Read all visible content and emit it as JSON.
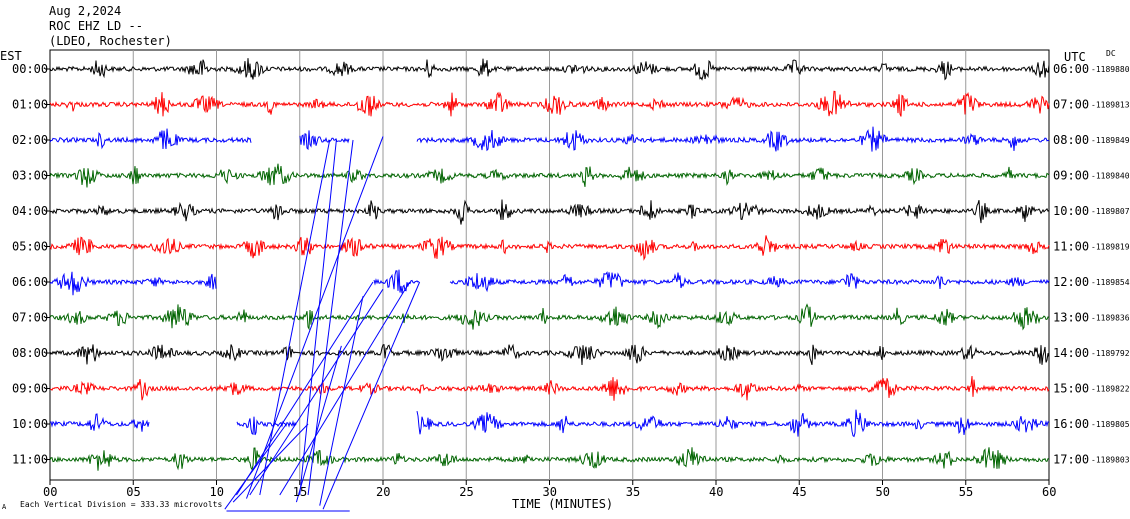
{
  "header": {
    "date": "Aug 2,2024",
    "station": "ROC EHZ LD --",
    "network": "(LDEO, Rochester)"
  },
  "left_axis_title": "EST",
  "right_axis_title": "UTC",
  "dc_label": "DC",
  "footer_note": "Each Vertical Division = 333.33 microvolts",
  "footer_mark": "A",
  "chart_data": {
    "type": "line",
    "title": "",
    "xlabel": "TIME (MINUTES)",
    "ylabel": "",
    "xlim": [
      0,
      60
    ],
    "x_ticks": [
      0,
      5,
      10,
      15,
      20,
      25,
      30,
      35,
      40,
      45,
      50,
      55,
      60
    ],
    "x_tick_labels": [
      "00",
      "05",
      "10",
      "15",
      "20",
      "25",
      "30",
      "35",
      "40",
      "45",
      "50",
      "55",
      "60"
    ],
    "grid": true,
    "trace_colors": [
      "#000000",
      "#ff0000",
      "#0000ff",
      "#006400"
    ],
    "rows": [
      {
        "est": "00:00",
        "utc": "06:00",
        "dc": "-1189880",
        "color": "#000000"
      },
      {
        "est": "01:00",
        "utc": "07:00",
        "dc": "-1189813",
        "color": "#ff0000"
      },
      {
        "est": "02:00",
        "utc": "08:00",
        "dc": "-1189849",
        "color": "#0000ff",
        "gap_minutes": [
          [
            12.1,
            15.0
          ],
          [
            18.0,
            22.0
          ]
        ]
      },
      {
        "est": "03:00",
        "utc": "09:00",
        "dc": "-1189840",
        "color": "#006400"
      },
      {
        "est": "04:00",
        "utc": "10:00",
        "dc": "-1189807",
        "color": "#000000"
      },
      {
        "est": "05:00",
        "utc": "11:00",
        "dc": "-1189819",
        "color": "#ff0000"
      },
      {
        "est": "06:00",
        "utc": "12:00",
        "dc": "-1189854",
        "color": "#0000ff",
        "gap_minutes": [
          [
            10.0,
            19.4
          ],
          [
            22.2,
            24.0
          ]
        ]
      },
      {
        "est": "07:00",
        "utc": "13:00",
        "dc": "-1189836",
        "color": "#006400"
      },
      {
        "est": "08:00",
        "utc": "14:00",
        "dc": "-1189792",
        "color": "#000000"
      },
      {
        "est": "09:00",
        "utc": "15:00",
        "dc": "-1189822",
        "color": "#ff0000"
      },
      {
        "est": "10:00",
        "utc": "16:00",
        "dc": "-1189805",
        "color": "#0000ff",
        "gap_minutes": [
          [
            6.0,
            11.2
          ],
          [
            14.8,
            22.0
          ]
        ]
      },
      {
        "est": "11:00",
        "utc": "17:00",
        "dc": "-1189803",
        "color": "#006400"
      }
    ]
  }
}
